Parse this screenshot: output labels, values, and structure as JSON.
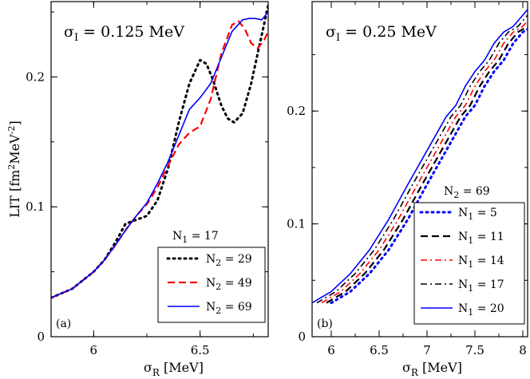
{
  "figure": {
    "ylabel": "LIT [fm^2MeV^-2]"
  },
  "chart_data": [
    {
      "type": "line",
      "panel": "(a)",
      "title": "σ_I = 0.125 MeV",
      "title_main": "σ",
      "title_sub": "I",
      "title_rest": " = 0.125 MeV",
      "xlabel_main": "σ",
      "xlabel_sub": "R",
      "xlabel_rest": " [MeV]",
      "xlim": [
        5.8,
        6.82
      ],
      "ylim": [
        0,
        0.258
      ],
      "xticks": [
        6,
        6.5
      ],
      "xtick_labels": [
        "6",
        "6.5"
      ],
      "yticks": [
        0,
        0.1,
        0.2
      ],
      "ytick_labels": [
        "0",
        "0.1",
        "0.2"
      ],
      "legend_title": "N_1 = 17",
      "legend_title_main": "N",
      "legend_title_sub": "1",
      "legend_title_rest": " = 17",
      "legend_sym": "N",
      "legend_sub": "2",
      "series": [
        {
          "name": "N_2 = 29",
          "label_rest": " = 29",
          "color": "#000000",
          "style": "dotted",
          "x": [
            5.8,
            5.9,
            6.0,
            6.05,
            6.1,
            6.15,
            6.2,
            6.25,
            6.3,
            6.35,
            6.4,
            6.45,
            6.5,
            6.53,
            6.56,
            6.6,
            6.63,
            6.66,
            6.7,
            6.74,
            6.78,
            6.82
          ],
          "y": [
            0.03,
            0.037,
            0.05,
            0.059,
            0.072,
            0.087,
            0.09,
            0.093,
            0.105,
            0.13,
            0.165,
            0.195,
            0.213,
            0.21,
            0.198,
            0.178,
            0.168,
            0.165,
            0.172,
            0.195,
            0.225,
            0.255
          ]
        },
        {
          "name": "N_2 = 49",
          "label_rest": " = 49",
          "color": "#ff0000",
          "style": "dashed",
          "x": [
            5.8,
            5.9,
            6.0,
            6.05,
            6.1,
            6.15,
            6.2,
            6.25,
            6.3,
            6.35,
            6.4,
            6.45,
            6.5,
            6.55,
            6.6,
            6.65,
            6.68,
            6.71,
            6.74,
            6.77,
            6.8,
            6.82
          ],
          "y": [
            0.03,
            0.037,
            0.05,
            0.059,
            0.07,
            0.082,
            0.093,
            0.102,
            0.115,
            0.132,
            0.148,
            0.157,
            0.162,
            0.183,
            0.218,
            0.24,
            0.243,
            0.237,
            0.226,
            0.222,
            0.228,
            0.235
          ]
        },
        {
          "name": "N_2 = 69",
          "label_rest": " = 69",
          "color": "#0000ff",
          "style": "solid",
          "x": [
            5.8,
            5.9,
            6.0,
            6.05,
            6.1,
            6.15,
            6.2,
            6.25,
            6.3,
            6.35,
            6.4,
            6.45,
            6.5,
            6.55,
            6.6,
            6.65,
            6.7,
            6.73,
            6.76,
            6.79,
            6.82
          ],
          "y": [
            0.03,
            0.037,
            0.05,
            0.059,
            0.07,
            0.082,
            0.093,
            0.103,
            0.118,
            0.135,
            0.155,
            0.175,
            0.184,
            0.195,
            0.215,
            0.235,
            0.244,
            0.245,
            0.245,
            0.244,
            0.25
          ]
        }
      ]
    },
    {
      "type": "line",
      "panel": "(b)",
      "title": "σ_I = 0.25 MeV",
      "title_main": "σ",
      "title_sub": "I",
      "title_rest": " = 0.25 MeV",
      "xlabel_main": "σ",
      "xlabel_sub": "R",
      "xlabel_rest": " [MeV]",
      "xlim": [
        5.8,
        8.05
      ],
      "ylim": [
        0,
        0.297
      ],
      "xticks": [
        6,
        6.5,
        7,
        7.5,
        8
      ],
      "xtick_labels": [
        "6",
        "6.5",
        "7",
        "7.5",
        "8"
      ],
      "yticks": [
        0,
        0.1,
        0.2
      ],
      "ytick_labels": [
        "0",
        "0.1",
        "0.2"
      ],
      "legend_title": "N_2 = 69",
      "legend_title_main": "N",
      "legend_title_sub": "2",
      "legend_title_rest": " = 69",
      "legend_sym": "N",
      "legend_sub": "1",
      "series": [
        {
          "name": "N_1 = 5",
          "label_rest": " = 5",
          "color": "#0000ff",
          "style": "dotted",
          "shift": 0.2
        },
        {
          "name": "N_1 = 11",
          "label_rest": " = 11",
          "color": "#000000",
          "style": "dashed",
          "shift": 0.15
        },
        {
          "name": "N_1 = 14",
          "label_rest": " = 14",
          "color": "#ff0000",
          "style": "dashdot",
          "shift": 0.1
        },
        {
          "name": "N_1 = 17",
          "label_rest": " = 17",
          "color": "#000000",
          "style": "dashdot",
          "shift": 0.05
        },
        {
          "name": "N_1 = 20",
          "label_rest": " = 20",
          "color": "#0000ff",
          "style": "solid",
          "shift": 0.0
        }
      ],
      "base_x": [
        5.8,
        6.0,
        6.2,
        6.4,
        6.6,
        6.8,
        7.0,
        7.2,
        7.3,
        7.4,
        7.5,
        7.6,
        7.7,
        7.8,
        7.9,
        8.0,
        8.05
      ],
      "base_y": [
        0.03,
        0.04,
        0.056,
        0.077,
        0.104,
        0.135,
        0.165,
        0.195,
        0.205,
        0.222,
        0.235,
        0.245,
        0.26,
        0.27,
        0.275,
        0.285,
        0.29
      ]
    }
  ]
}
